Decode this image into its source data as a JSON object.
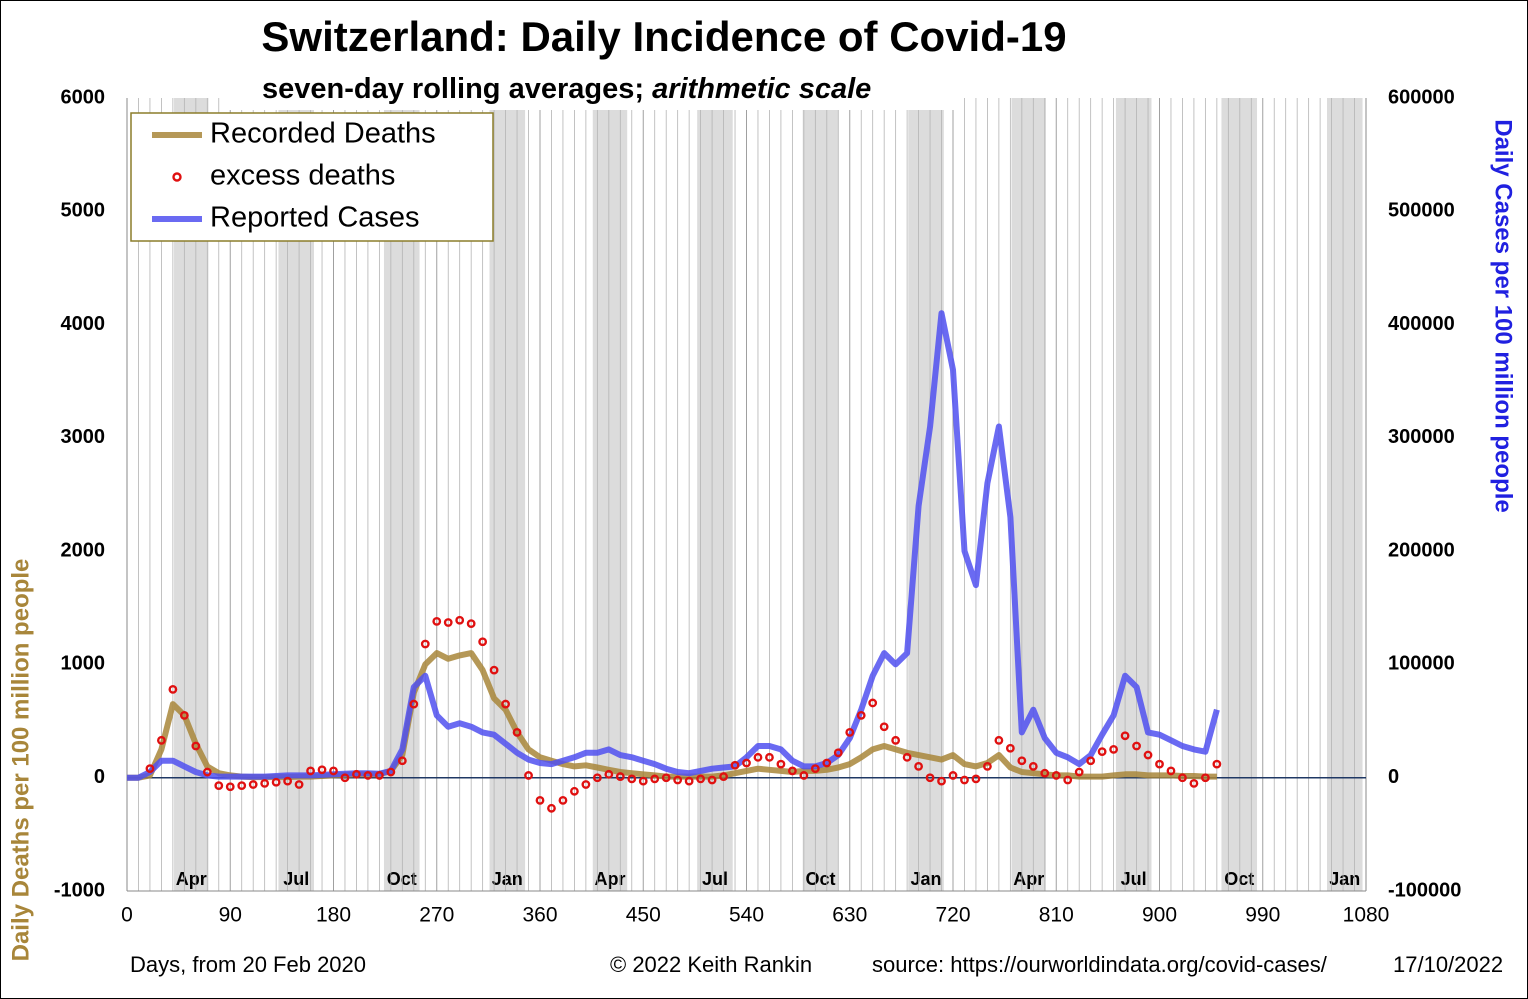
{
  "chart_data": {
    "type": "line",
    "title": "Switzerland: Daily Incidence of Covid-19",
    "subtitle": "seven-day rolling averages; ",
    "subtitle_italic": "arithmetic scale",
    "xlabel": "Days,  from 20 Feb 2020",
    "ylabel": "Daily Deaths per 100 million people",
    "y2label": "Daily Cases per 100 million people",
    "credit": "© 2022  Keith Rankin",
    "source": "source: https://ourworldindata.org/covid-cases/",
    "date": "17/10/2022",
    "xlim": [
      0,
      1080
    ],
    "xticks": [
      0,
      90,
      180,
      270,
      360,
      450,
      540,
      630,
      720,
      810,
      900,
      990,
      1080
    ],
    "ylim": [
      -1000,
      6000
    ],
    "yticks": [
      -1000,
      0,
      1000,
      2000,
      3000,
      4000,
      5000,
      6000
    ],
    "y2lim": [
      -100000,
      600000
    ],
    "y2ticks": [
      -100000,
      0,
      100000,
      200000,
      300000,
      400000,
      500000,
      600000
    ],
    "grid": true,
    "legend": "upper left",
    "month_bands": [
      {
        "label": "Apr",
        "start": 41,
        "end": 71
      },
      {
        "label": "Jul",
        "start": 132,
        "end": 163
      },
      {
        "label": "Oct",
        "start": 224,
        "end": 255
      },
      {
        "label": "Jan",
        "start": 316,
        "end": 347
      },
      {
        "label": "Apr",
        "start": 406,
        "end": 436
      },
      {
        "label": "Jul",
        "start": 497,
        "end": 528
      },
      {
        "label": "Oct",
        "start": 589,
        "end": 620
      },
      {
        "label": "Jan",
        "start": 681,
        "end": 712
      },
      {
        "label": "Apr",
        "start": 771,
        "end": 801
      },
      {
        "label": "Jul",
        "start": 862,
        "end": 893
      },
      {
        "label": "Oct",
        "start": 954,
        "end": 985
      },
      {
        "label": "Jan",
        "start": 1046,
        "end": 1077
      }
    ],
    "x": [
      0,
      10,
      20,
      30,
      40,
      50,
      60,
      70,
      80,
      90,
      100,
      110,
      120,
      130,
      140,
      150,
      160,
      170,
      180,
      190,
      200,
      210,
      220,
      230,
      240,
      250,
      260,
      270,
      280,
      290,
      300,
      310,
      320,
      330,
      340,
      350,
      360,
      370,
      380,
      390,
      400,
      410,
      420,
      430,
      440,
      450,
      460,
      470,
      480,
      490,
      500,
      510,
      520,
      530,
      540,
      550,
      560,
      570,
      580,
      590,
      600,
      610,
      620,
      630,
      640,
      650,
      660,
      670,
      680,
      690,
      700,
      710,
      720,
      730,
      740,
      750,
      760,
      770,
      780,
      790,
      800,
      810,
      820,
      830,
      840,
      850,
      860,
      870,
      880,
      890,
      900,
      910,
      920,
      930,
      940,
      950
    ],
    "series": [
      {
        "name": "Recorded Deaths",
        "color": "#a8863a",
        "mode": "line",
        "axis": "y",
        "values": [
          0,
          0,
          20,
          250,
          650,
          550,
          300,
          100,
          40,
          20,
          10,
          5,
          5,
          5,
          5,
          10,
          10,
          15,
          20,
          25,
          30,
          30,
          30,
          60,
          200,
          750,
          1000,
          1100,
          1050,
          1080,
          1100,
          950,
          700,
          600,
          400,
          250,
          180,
          150,
          120,
          100,
          110,
          90,
          70,
          50,
          40,
          30,
          20,
          10,
          10,
          10,
          10,
          10,
          20,
          40,
          60,
          80,
          70,
          60,
          50,
          60,
          60,
          70,
          90,
          120,
          180,
          250,
          280,
          250,
          220,
          200,
          180,
          160,
          200,
          120,
          100,
          130,
          200,
          90,
          50,
          40,
          30,
          20,
          20,
          10,
          10,
          10,
          20,
          30,
          30,
          20,
          20,
          20,
          15,
          15,
          10,
          10
        ]
      },
      {
        "name": "excess deaths",
        "color": "#e01010",
        "mode": "markers",
        "axis": "y",
        "values": [
          null,
          null,
          80,
          330,
          780,
          550,
          280,
          50,
          -70,
          -80,
          -70,
          -60,
          -50,
          -40,
          -30,
          -60,
          60,
          70,
          60,
          0,
          30,
          20,
          20,
          50,
          150,
          650,
          1180,
          1380,
          1370,
          1390,
          1360,
          1200,
          950,
          650,
          400,
          20,
          -200,
          -270,
          -200,
          -120,
          -60,
          0,
          30,
          10,
          -10,
          -30,
          -10,
          0,
          -20,
          -30,
          -10,
          -20,
          10,
          110,
          130,
          180,
          180,
          120,
          60,
          20,
          80,
          130,
          220,
          400,
          550,
          660,
          450,
          330,
          180,
          100,
          0,
          -30,
          20,
          -20,
          -10,
          100,
          330,
          260,
          150,
          100,
          40,
          20,
          -20,
          50,
          150,
          230,
          250,
          370,
          280,
          200,
          120,
          60,
          0,
          -50,
          0,
          120
        ]
      },
      {
        "name": "Reported Cases",
        "color": "#5050f0",
        "mode": "line",
        "axis": "y2",
        "values": [
          0,
          0,
          5000,
          15000,
          15000,
          10000,
          5000,
          2000,
          1000,
          1000,
          1000,
          1000,
          1000,
          1500,
          2000,
          2000,
          2000,
          2500,
          3000,
          3500,
          4000,
          4000,
          3500,
          6000,
          25000,
          80000,
          90000,
          55000,
          45000,
          48000,
          45000,
          40000,
          38000,
          30000,
          22000,
          16000,
          13000,
          12000,
          15000,
          18000,
          22000,
          22000,
          25000,
          20000,
          18000,
          15000,
          12000,
          8000,
          5000,
          4000,
          6000,
          8000,
          9000,
          10000,
          18000,
          28000,
          28000,
          25000,
          15000,
          10000,
          10000,
          13000,
          20000,
          35000,
          60000,
          90000,
          110000,
          100000,
          110000,
          240000,
          310000,
          410000,
          360000,
          200000,
          170000,
          260000,
          310000,
          230000,
          40000,
          60000,
          35000,
          22000,
          18000,
          12000,
          20000,
          38000,
          55000,
          90000,
          80000,
          40000,
          38000,
          33000,
          28000,
          25000,
          23000,
          60000
        ]
      }
    ]
  }
}
